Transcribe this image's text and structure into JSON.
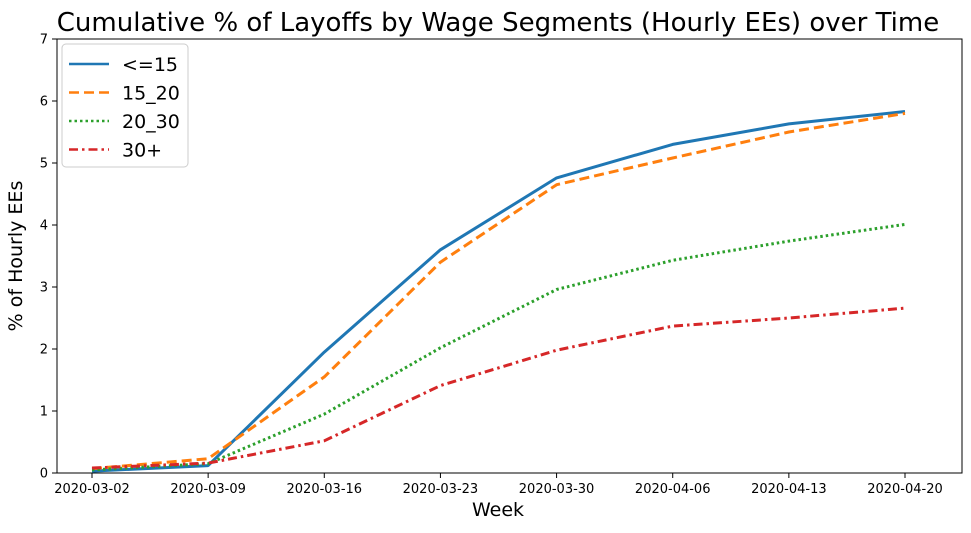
{
  "chart_data": {
    "type": "line",
    "title": "Cumulative % of Layoffs by Wage Segments (Hourly EEs) over Time",
    "xlabel": "Week",
    "ylabel": "% of Hourly EEs",
    "categories": [
      "2020-03-02",
      "2020-03-09",
      "2020-03-16",
      "2020-03-23",
      "2020-03-30",
      "2020-04-06",
      "2020-04-13",
      "2020-04-20"
    ],
    "ylim": [
      0,
      7
    ],
    "yticks": [
      "0",
      "1",
      "2",
      "3",
      "4",
      "5",
      "6",
      "7"
    ],
    "grid": false,
    "legend_position": "top-left",
    "series": [
      {
        "name": "<=15",
        "values": [
          0.03,
          0.12,
          1.95,
          3.6,
          4.76,
          5.3,
          5.63,
          5.83
        ],
        "color": "#1f77b4",
        "style": "solid"
      },
      {
        "name": "15_20",
        "values": [
          0.07,
          0.23,
          1.55,
          3.4,
          4.65,
          5.08,
          5.5,
          5.8
        ],
        "color": "#ff7f0e",
        "style": "dashed"
      },
      {
        "name": "20_30",
        "values": [
          0.05,
          0.15,
          0.95,
          2.02,
          2.96,
          3.43,
          3.74,
          4.01
        ],
        "color": "#2ca02c",
        "style": "dotted"
      },
      {
        "name": "30+",
        "values": [
          0.08,
          0.16,
          0.52,
          1.41,
          1.98,
          2.37,
          2.5,
          2.66
        ],
        "color": "#d62728",
        "style": "dashdot"
      }
    ]
  }
}
